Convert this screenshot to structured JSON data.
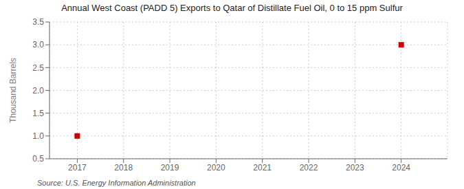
{
  "chart_data": {
    "type": "scatter",
    "title": "Annual West Coast (PADD 5) Exports to Qatar of Distillate Fuel Oil, 0 to 15 ppm Sulfur",
    "ylabel": "Thousand Barrels",
    "source": "Source: U.S. Energy Information Administration",
    "x": [
      2017,
      2024
    ],
    "values": [
      1.0,
      3.0
    ],
    "color": "#cc0000",
    "marker": "square",
    "xlim": [
      2016.4,
      2025.0
    ],
    "ylim": [
      0.5,
      3.5
    ],
    "xticks": [
      2017,
      2018,
      2019,
      2020,
      2021,
      2022,
      2023,
      2024
    ],
    "yticks": [
      0.5,
      {
        "value": 1.0,
        "label": "1.0"
      },
      1.5,
      {
        "value": 2.0,
        "label": "2.0"
      },
      2.5,
      {
        "value": 3.0,
        "label": "3.0"
      },
      3.5
    ],
    "grid": true
  }
}
